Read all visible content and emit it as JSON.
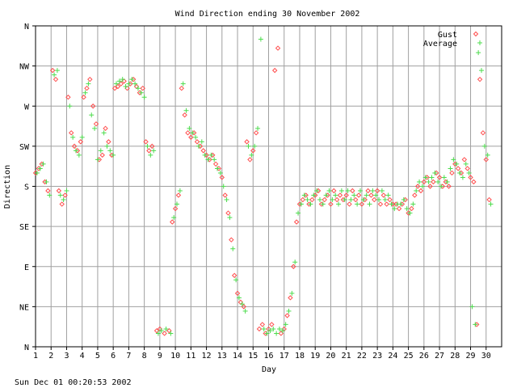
{
  "chart_data": {
    "type": "scatter",
    "title": "Wind Direction ending 30 November 2002",
    "xlabel": "Day",
    "ylabel": "Direction",
    "x_ticks": [
      "1",
      "2",
      "3",
      "4",
      "5",
      "6",
      "7",
      "8",
      "9",
      "10",
      "11",
      "12",
      "13",
      "14",
      "15",
      "16",
      "17",
      "18",
      "19",
      "20",
      "21",
      "22",
      "23",
      "24",
      "25",
      "26",
      "27",
      "28",
      "29",
      "30"
    ],
    "y_ticks": [
      "N",
      "NE",
      "E",
      "SE",
      "S",
      "SW",
      "W",
      "NW",
      "N"
    ],
    "xlim": [
      1,
      31
    ],
    "ylim": [
      0,
      360
    ],
    "grid": true,
    "legend_position": "top-right",
    "footer": "Sun Dec 01 00:20:53 2002",
    "series": [
      {
        "name": "Gust",
        "color": "#ff4d4d",
        "marker": "diamond",
        "points": [
          [
            1.0,
            195
          ],
          [
            1.2,
            200
          ],
          [
            1.4,
            205
          ],
          [
            1.6,
            185
          ],
          [
            1.8,
            175
          ],
          [
            2.1,
            310
          ],
          [
            2.3,
            300
          ],
          [
            2.5,
            175
          ],
          [
            2.7,
            160
          ],
          [
            2.9,
            170
          ],
          [
            3.1,
            280
          ],
          [
            3.3,
            240
          ],
          [
            3.5,
            225
          ],
          [
            3.7,
            220
          ],
          [
            3.9,
            230
          ],
          [
            4.1,
            280
          ],
          [
            4.3,
            290
          ],
          [
            4.5,
            300
          ],
          [
            4.7,
            270
          ],
          [
            4.9,
            250
          ],
          [
            5.1,
            210
          ],
          [
            5.3,
            215
          ],
          [
            5.5,
            245
          ],
          [
            5.7,
            230
          ],
          [
            5.9,
            215
          ],
          [
            6.1,
            290
          ],
          [
            6.3,
            292
          ],
          [
            6.5,
            295
          ],
          [
            6.7,
            298
          ],
          [
            6.9,
            290
          ],
          [
            7.1,
            295
          ],
          [
            7.3,
            300
          ],
          [
            7.5,
            292
          ],
          [
            7.7,
            285
          ],
          [
            7.9,
            290
          ],
          [
            8.1,
            230
          ],
          [
            8.3,
            220
          ],
          [
            8.5,
            225
          ],
          [
            8.8,
            18
          ],
          [
            9.0,
            20
          ],
          [
            9.3,
            15
          ],
          [
            9.6,
            18
          ],
          [
            9.8,
            140
          ],
          [
            10.0,
            155
          ],
          [
            10.2,
            170
          ],
          [
            10.4,
            290
          ],
          [
            10.6,
            260
          ],
          [
            10.8,
            240
          ],
          [
            11.0,
            235
          ],
          [
            11.2,
            240
          ],
          [
            11.4,
            230
          ],
          [
            11.6,
            225
          ],
          [
            11.8,
            220
          ],
          [
            12.0,
            215
          ],
          [
            12.2,
            210
          ],
          [
            12.4,
            215
          ],
          [
            12.6,
            205
          ],
          [
            12.8,
            200
          ],
          [
            13.0,
            190
          ],
          [
            13.2,
            170
          ],
          [
            13.4,
            150
          ],
          [
            13.6,
            120
          ],
          [
            13.8,
            80
          ],
          [
            14.0,
            60
          ],
          [
            14.2,
            50
          ],
          [
            14.4,
            45
          ],
          [
            14.6,
            230
          ],
          [
            14.8,
            210
          ],
          [
            15.0,
            220
          ],
          [
            15.2,
            240
          ],
          [
            15.4,
            20
          ],
          [
            15.6,
            25
          ],
          [
            15.8,
            15
          ],
          [
            16.0,
            20
          ],
          [
            16.2,
            25
          ],
          [
            16.4,
            310
          ],
          [
            16.6,
            335
          ],
          [
            16.8,
            15
          ],
          [
            17.0,
            20
          ],
          [
            17.2,
            35
          ],
          [
            17.4,
            55
          ],
          [
            17.6,
            90
          ],
          [
            17.8,
            140
          ],
          [
            18.0,
            160
          ],
          [
            18.2,
            165
          ],
          [
            18.4,
            170
          ],
          [
            18.6,
            160
          ],
          [
            18.8,
            165
          ],
          [
            19.0,
            170
          ],
          [
            19.2,
            175
          ],
          [
            19.4,
            160
          ],
          [
            19.6,
            165
          ],
          [
            19.8,
            170
          ],
          [
            20.0,
            160
          ],
          [
            20.2,
            175
          ],
          [
            20.4,
            165
          ],
          [
            20.6,
            170
          ],
          [
            20.8,
            165
          ],
          [
            21.0,
            170
          ],
          [
            21.2,
            160
          ],
          [
            21.4,
            175
          ],
          [
            21.6,
            165
          ],
          [
            21.8,
            170
          ],
          [
            22.0,
            160
          ],
          [
            22.2,
            165
          ],
          [
            22.4,
            175
          ],
          [
            22.6,
            170
          ],
          [
            22.8,
            165
          ],
          [
            23.0,
            175
          ],
          [
            23.2,
            160
          ],
          [
            23.4,
            170
          ],
          [
            23.6,
            160
          ],
          [
            23.8,
            165
          ],
          [
            24.0,
            160
          ],
          [
            24.2,
            160
          ],
          [
            24.4,
            155
          ],
          [
            24.6,
            160
          ],
          [
            24.8,
            165
          ],
          [
            25.0,
            150
          ],
          [
            25.2,
            155
          ],
          [
            25.4,
            170
          ],
          [
            25.6,
            180
          ],
          [
            25.8,
            175
          ],
          [
            26.0,
            185
          ],
          [
            26.2,
            190
          ],
          [
            26.4,
            180
          ],
          [
            26.6,
            185
          ],
          [
            26.8,
            195
          ],
          [
            27.0,
            190
          ],
          [
            27.2,
            180
          ],
          [
            27.4,
            185
          ],
          [
            27.6,
            180
          ],
          [
            27.8,
            195
          ],
          [
            28.0,
            205
          ],
          [
            28.2,
            200
          ],
          [
            28.4,
            195
          ],
          [
            28.6,
            210
          ],
          [
            28.8,
            200
          ],
          [
            29.0,
            190
          ],
          [
            29.2,
            185
          ],
          [
            29.4,
            25
          ],
          [
            29.6,
            300
          ],
          [
            29.8,
            240
          ],
          [
            30.0,
            210
          ],
          [
            30.2,
            165
          ]
        ]
      },
      {
        "name": "Average",
        "color": "#4ddc4d",
        "marker": "plus",
        "points": [
          [
            1.1,
            195
          ],
          [
            1.3,
            200
          ],
          [
            1.5,
            205
          ],
          [
            1.7,
            185
          ],
          [
            1.9,
            170
          ],
          [
            2.2,
            305
          ],
          [
            2.4,
            310
          ],
          [
            2.6,
            170
          ],
          [
            2.8,
            165
          ],
          [
            3.0,
            175
          ],
          [
            3.2,
            270
          ],
          [
            3.4,
            235
          ],
          [
            3.6,
            220
          ],
          [
            3.8,
            215
          ],
          [
            4.0,
            235
          ],
          [
            4.2,
            285
          ],
          [
            4.4,
            295
          ],
          [
            4.6,
            260
          ],
          [
            4.8,
            245
          ],
          [
            5.0,
            210
          ],
          [
            5.2,
            220
          ],
          [
            5.4,
            240
          ],
          [
            5.6,
            225
          ],
          [
            5.8,
            220
          ],
          [
            6.0,
            215
          ],
          [
            6.2,
            295
          ],
          [
            6.4,
            298
          ],
          [
            6.6,
            300
          ],
          [
            6.8,
            292
          ],
          [
            7.0,
            295
          ],
          [
            7.2,
            300
          ],
          [
            7.4,
            295
          ],
          [
            7.6,
            290
          ],
          [
            7.8,
            285
          ],
          [
            8.0,
            280
          ],
          [
            8.2,
            225
          ],
          [
            8.4,
            215
          ],
          [
            8.6,
            220
          ],
          [
            8.9,
            15
          ],
          [
            9.1,
            18
          ],
          [
            9.4,
            20
          ],
          [
            9.7,
            15
          ],
          [
            9.9,
            145
          ],
          [
            10.1,
            160
          ],
          [
            10.3,
            175
          ],
          [
            10.5,
            295
          ],
          [
            10.7,
            265
          ],
          [
            10.9,
            245
          ],
          [
            11.1,
            240
          ],
          [
            11.3,
            235
          ],
          [
            11.5,
            225
          ],
          [
            11.7,
            230
          ],
          [
            11.9,
            215
          ],
          [
            12.1,
            210
          ],
          [
            12.3,
            215
          ],
          [
            12.5,
            210
          ],
          [
            12.7,
            200
          ],
          [
            12.9,
            195
          ],
          [
            13.1,
            180
          ],
          [
            13.3,
            165
          ],
          [
            13.5,
            145
          ],
          [
            13.7,
            110
          ],
          [
            13.9,
            75
          ],
          [
            14.1,
            55
          ],
          [
            14.3,
            48
          ],
          [
            14.5,
            40
          ],
          [
            14.7,
            225
          ],
          [
            14.9,
            215
          ],
          [
            15.1,
            225
          ],
          [
            15.3,
            245
          ],
          [
            15.5,
            345
          ],
          [
            15.7,
            20
          ],
          [
            15.9,
            15
          ],
          [
            16.1,
            18
          ],
          [
            16.3,
            20
          ],
          [
            16.5,
            15
          ],
          [
            16.7,
            20
          ],
          [
            16.9,
            18
          ],
          [
            17.1,
            25
          ],
          [
            17.3,
            40
          ],
          [
            17.5,
            60
          ],
          [
            17.7,
            95
          ],
          [
            17.9,
            150
          ],
          [
            18.1,
            160
          ],
          [
            18.3,
            170
          ],
          [
            18.5,
            165
          ],
          [
            18.7,
            160
          ],
          [
            18.9,
            170
          ],
          [
            19.1,
            175
          ],
          [
            19.3,
            165
          ],
          [
            19.5,
            160
          ],
          [
            19.7,
            170
          ],
          [
            19.9,
            175
          ],
          [
            20.1,
            165
          ],
          [
            20.3,
            170
          ],
          [
            20.5,
            160
          ],
          [
            20.7,
            175
          ],
          [
            20.9,
            165
          ],
          [
            21.1,
            175
          ],
          [
            21.3,
            165
          ],
          [
            21.5,
            170
          ],
          [
            21.7,
            160
          ],
          [
            21.9,
            175
          ],
          [
            22.1,
            165
          ],
          [
            22.3,
            170
          ],
          [
            22.5,
            160
          ],
          [
            22.7,
            175
          ],
          [
            22.9,
            170
          ],
          [
            23.1,
            165
          ],
          [
            23.3,
            175
          ],
          [
            23.5,
            165
          ],
          [
            23.7,
            170
          ],
          [
            23.9,
            160
          ],
          [
            24.1,
            155
          ],
          [
            24.3,
            160
          ],
          [
            24.5,
            160
          ],
          [
            24.7,
            165
          ],
          [
            24.9,
            155
          ],
          [
            25.1,
            150
          ],
          [
            25.3,
            160
          ],
          [
            25.5,
            175
          ],
          [
            25.7,
            185
          ],
          [
            25.9,
            180
          ],
          [
            26.1,
            190
          ],
          [
            26.3,
            185
          ],
          [
            26.5,
            190
          ],
          [
            26.7,
            195
          ],
          [
            26.9,
            185
          ],
          [
            27.1,
            180
          ],
          [
            27.3,
            190
          ],
          [
            27.5,
            185
          ],
          [
            27.7,
            200
          ],
          [
            27.9,
            210
          ],
          [
            28.1,
            205
          ],
          [
            28.3,
            195
          ],
          [
            28.5,
            190
          ],
          [
            28.7,
            205
          ],
          [
            28.9,
            195
          ],
          [
            29.1,
            45
          ],
          [
            29.3,
            25
          ],
          [
            29.5,
            330
          ],
          [
            29.7,
            310
          ],
          [
            29.9,
            225
          ],
          [
            30.1,
            215
          ],
          [
            30.3,
            160
          ]
        ]
      }
    ]
  }
}
